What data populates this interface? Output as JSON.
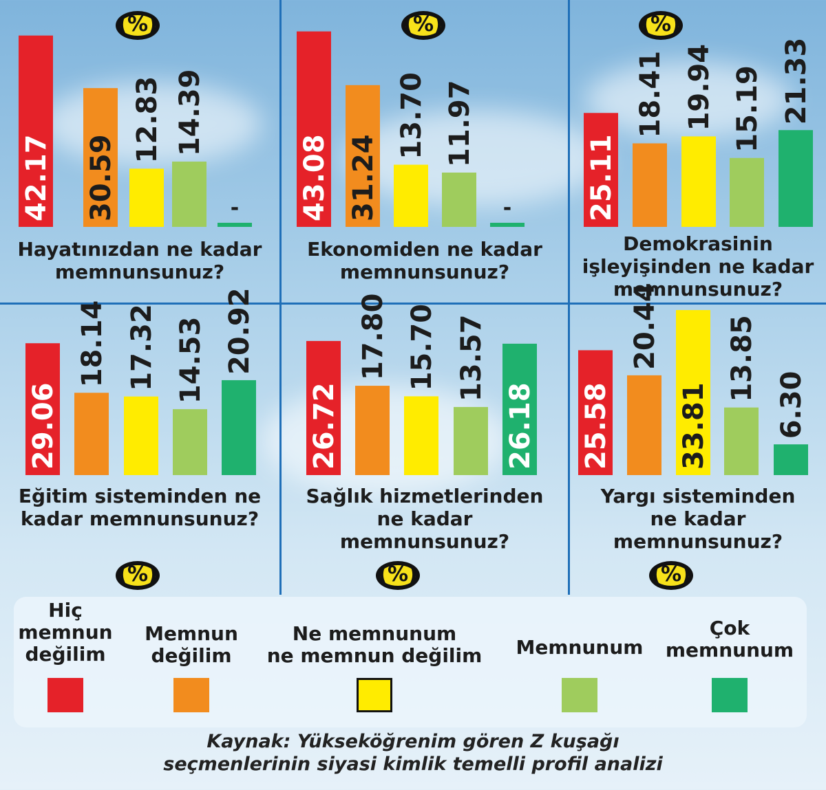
{
  "percent_marker": "(%)",
  "legend": [
    {
      "label": "Hiç memnun değilim",
      "lines": [
        "Hiç",
        "memnun",
        "değilim"
      ],
      "color": "#e52229"
    },
    {
      "label": "Memnun değilim",
      "lines": [
        "Memnun",
        "değilim"
      ],
      "color": "#f28c1e"
    },
    {
      "label": "Ne memnunum ne memnun değilim",
      "lines": [
        "Ne memnunum",
        "ne memnun değilim"
      ],
      "color": "#ffec00"
    },
    {
      "label": "Memnunum",
      "lines": [
        "Memnunum"
      ],
      "color": "#9fcc5d"
    },
    {
      "label": "Çok memnunum",
      "lines": [
        "Çok",
        "memnunum"
      ],
      "color": "#1fb16e"
    }
  ],
  "source": [
    "Kaynak: Yükseköğrenim gören Z kuşağı",
    "seçmenlerinin siyasi kimlik temelli profil analizi"
  ],
  "chart_data": [
    {
      "type": "bar",
      "title": "Hayatınızdan ne kadar memnunsunuz?",
      "title_lines": [
        "Hayatınızdan ne kadar",
        "memnunsunuz?"
      ],
      "categories": [
        "Hiç memnun değilim",
        "Memnun değilim",
        "Ne memnunum ne memnun değilim",
        "Memnunum",
        "Çok memnunum"
      ],
      "values": [
        42.17,
        30.59,
        12.83,
        14.39,
        null
      ],
      "labels": [
        "42.17",
        "30.59",
        "12.83",
        "14.39",
        "-"
      ],
      "unit": "%"
    },
    {
      "type": "bar",
      "title": "Ekonomiden ne kadar memnunsunuz?",
      "title_lines": [
        "Ekonomiden ne kadar",
        "memnunsunuz?"
      ],
      "categories": [
        "Hiç memnun değilim",
        "Memnun değilim",
        "Ne memnunum ne memnun değilim",
        "Memnunum",
        "Çok memnunum"
      ],
      "values": [
        43.08,
        31.24,
        13.7,
        11.97,
        null
      ],
      "labels": [
        "43.08",
        "31.24",
        "13.70",
        "11.97",
        "-"
      ],
      "unit": "%"
    },
    {
      "type": "bar",
      "title": "Demokrasinin işleyişinden ne kadar memnunsunuz?",
      "title_lines": [
        "Demokrasinin",
        "işleyişinden ne kadar",
        "memnunsunuz?"
      ],
      "categories": [
        "Hiç memnun değilim",
        "Memnun değilim",
        "Ne memnunum ne memnun değilim",
        "Memnunum",
        "Çok memnunum"
      ],
      "values": [
        25.11,
        18.41,
        19.94,
        15.19,
        21.33
      ],
      "labels": [
        "25.11",
        "18.41",
        "19.94",
        "15.19",
        "21.33"
      ],
      "unit": "%"
    },
    {
      "type": "bar",
      "title": "Eğitim sisteminden ne kadar memnunsunuz?",
      "title_lines": [
        "Eğitim sisteminden ne",
        "kadar memnunsunuz?"
      ],
      "categories": [
        "Hiç memnun değilim",
        "Memnun değilim",
        "Ne memnunum ne memnun değilim",
        "Memnunum",
        "Çok memnunum"
      ],
      "values": [
        29.06,
        18.14,
        17.32,
        14.53,
        20.92
      ],
      "labels": [
        "29.06",
        "18.14",
        "17.32",
        "14.53",
        "20.92"
      ],
      "unit": "%"
    },
    {
      "type": "bar",
      "title": "Sağlık hizmetlerinden ne kadar memnunsunuz?",
      "title_lines": [
        "Sağlık hizmetlerinden",
        "ne kadar",
        "memnunsunuz?"
      ],
      "categories": [
        "Hiç memnun değilim",
        "Memnun değilim",
        "Ne memnunum ne memnun değilim",
        "Memnunum",
        "Çok memnunum"
      ],
      "values": [
        26.72,
        17.8,
        15.7,
        13.57,
        26.18
      ],
      "labels": [
        "26.72",
        "17.80",
        "15.70",
        "13.57",
        "26.18"
      ],
      "unit": "%"
    },
    {
      "type": "bar",
      "title": "Yargı sisteminden ne kadar memnunsunuz?",
      "title_lines": [
        "Yargı sisteminden",
        "ne kadar",
        "memnunsunuz?"
      ],
      "categories": [
        "Hiç memnun değilim",
        "Memnun değilim",
        "Ne memnunum ne memnun değilim",
        "Memnunum",
        "Çok memnunum"
      ],
      "values": [
        25.58,
        20.44,
        33.81,
        13.85,
        6.3
      ],
      "labels": [
        "25.58",
        "20.44",
        "33.81",
        "13.85",
        "6.30"
      ],
      "unit": "%"
    }
  ]
}
